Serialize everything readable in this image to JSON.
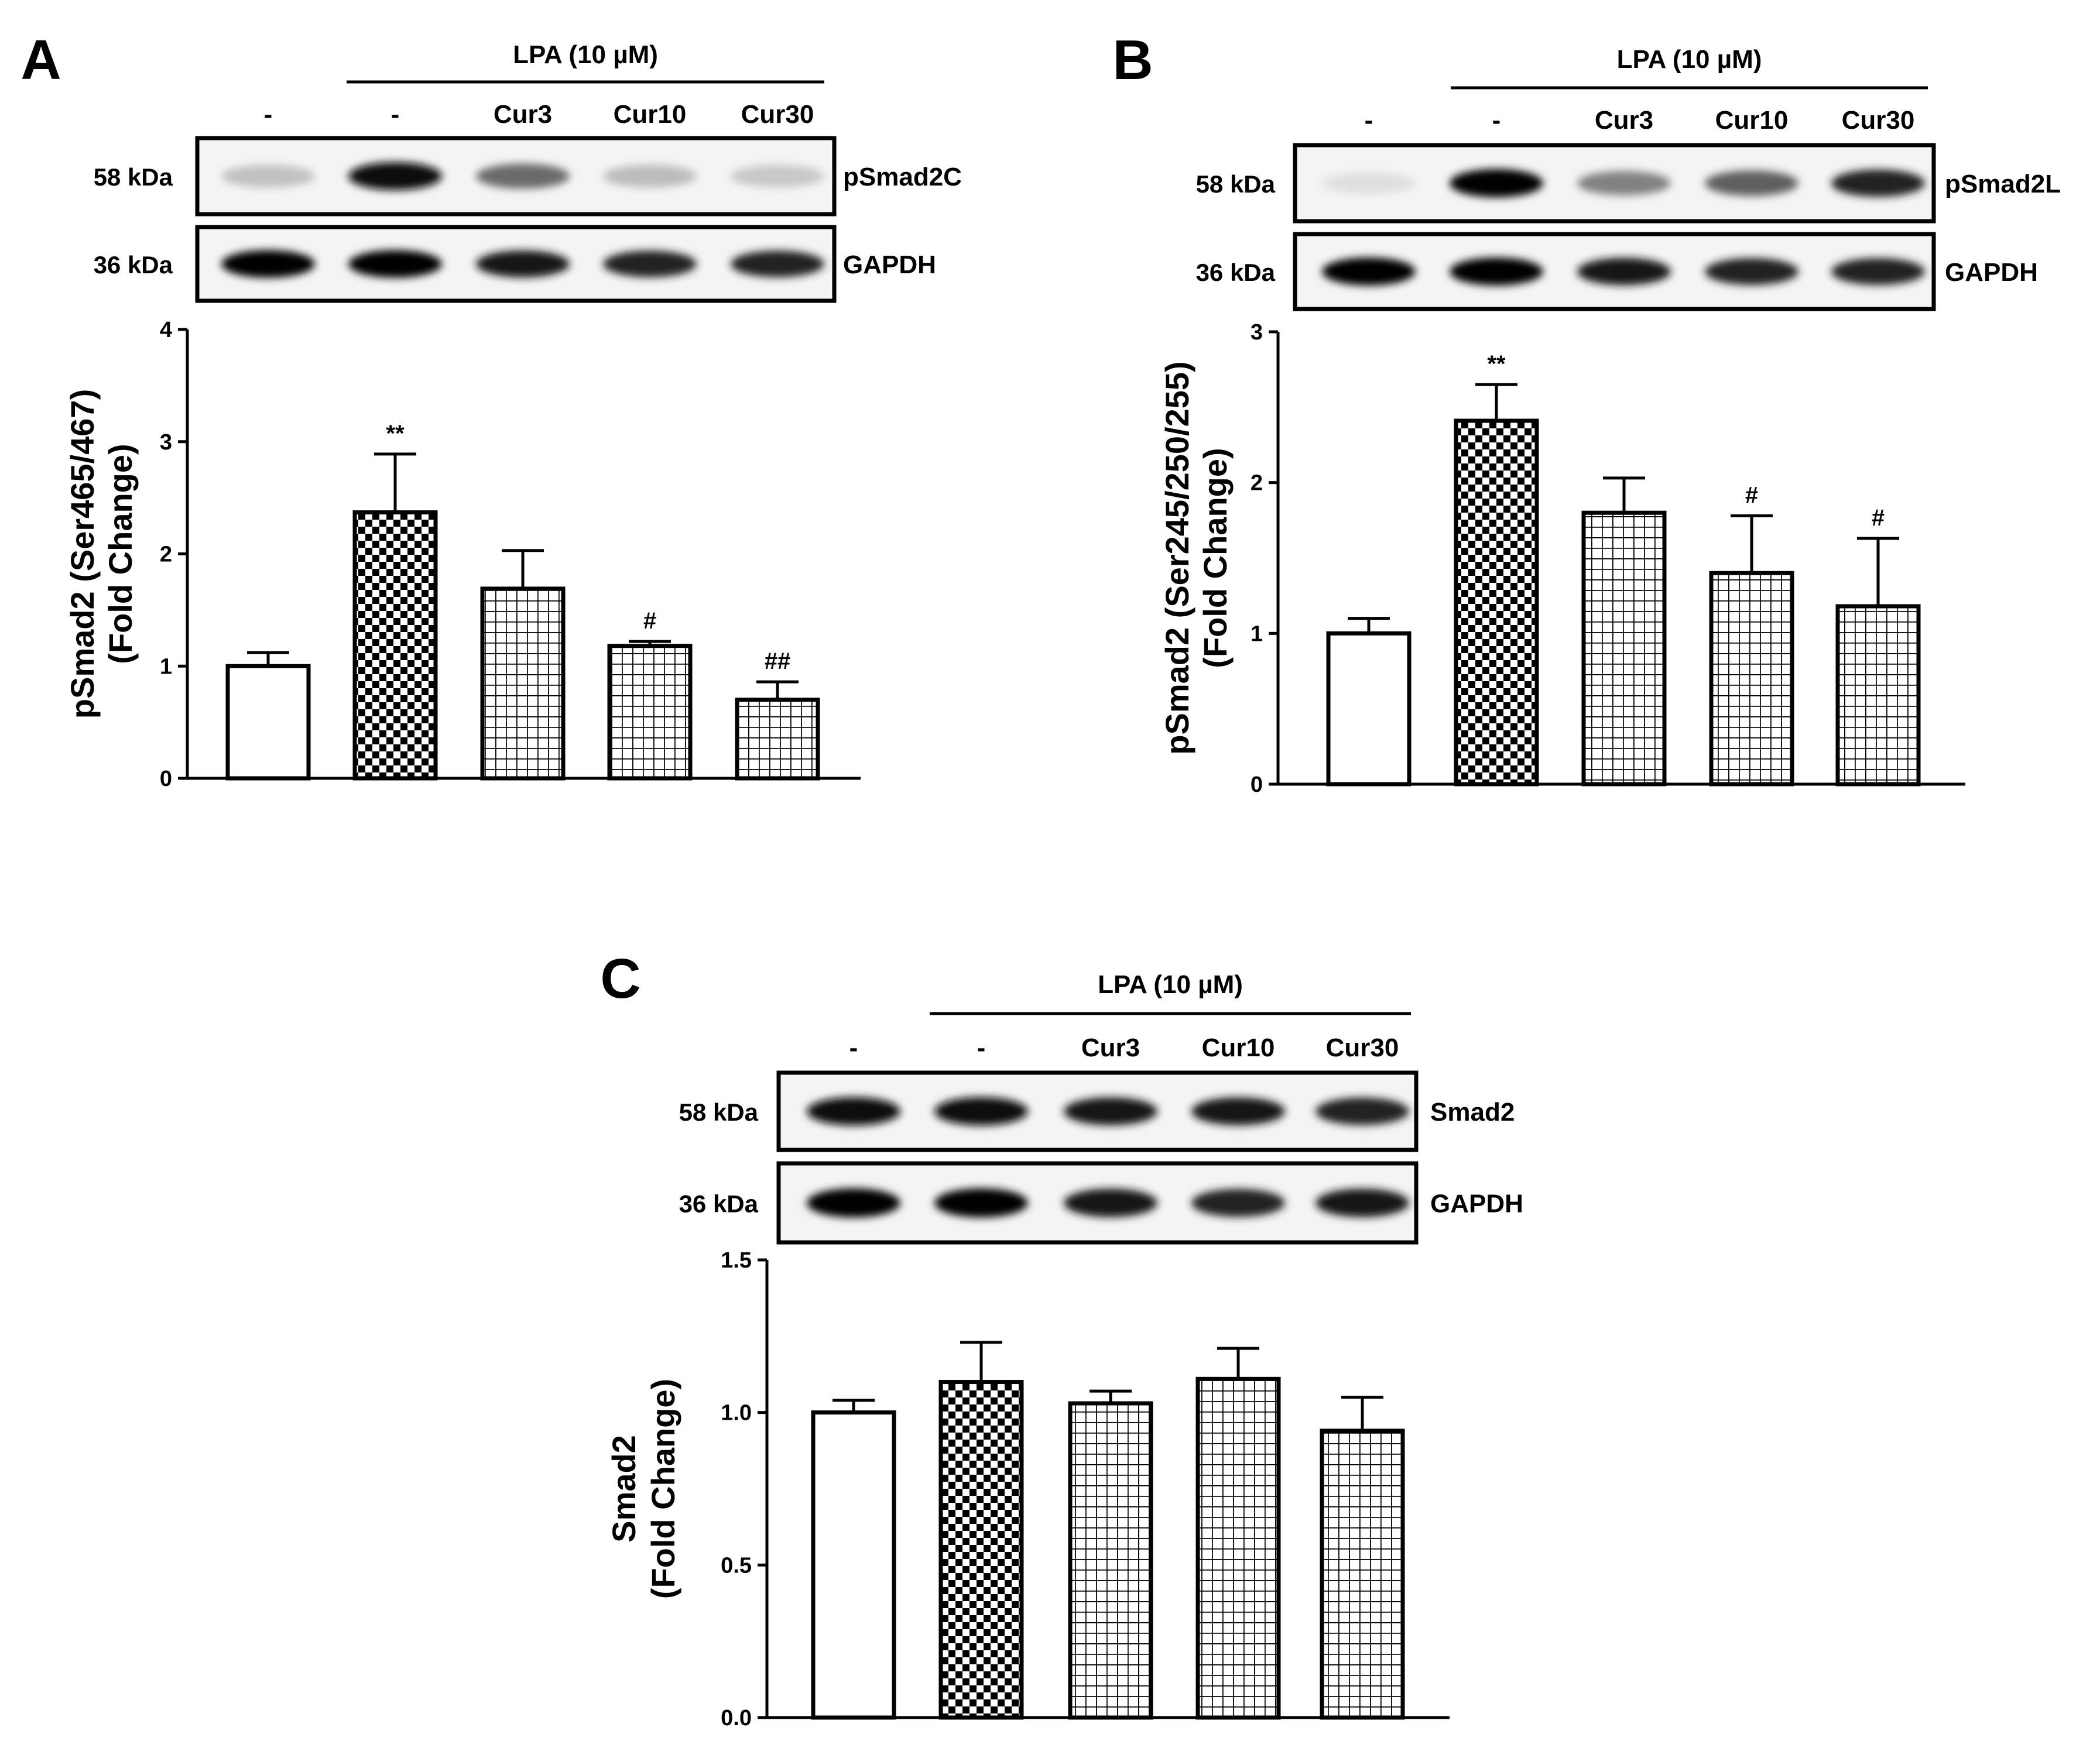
{
  "panels": [
    {
      "letter": "A",
      "treatment_label": "LPA (10 µM)",
      "lanes": [
        "-",
        "-",
        "Cur3",
        "Cur10",
        "Cur30"
      ],
      "blots": [
        {
          "kda": "58 kDa",
          "protein": "pSmad2C",
          "intensities": [
            0.18,
            0.95,
            0.55,
            0.2,
            0.15
          ]
        },
        {
          "kda": "36 kDa",
          "protein": "GAPDH",
          "intensities": [
            1.0,
            1.0,
            0.9,
            0.85,
            0.85
          ]
        }
      ],
      "chart_data": {
        "type": "bar",
        "categories": [
          "-",
          "-",
          "Cur3",
          "Cur10",
          "Cur30"
        ],
        "values": [
          1.0,
          2.37,
          1.69,
          1.18,
          0.7
        ],
        "errors": [
          0.12,
          0.52,
          0.34,
          0.04,
          0.16
        ],
        "significance": [
          "",
          "**",
          "",
          "#",
          "##"
        ],
        "ylabel": [
          "pSmad2 (Ser465/467)",
          "(Fold Change)"
        ],
        "ylim": [
          0,
          4
        ],
        "yticks": [
          "0",
          "1",
          "2",
          "3",
          "4"
        ],
        "ytick_values": [
          0,
          1,
          2,
          3,
          4
        ]
      }
    },
    {
      "letter": "B",
      "treatment_label": "LPA (10 µM)",
      "lanes": [
        "-",
        "-",
        "Cur3",
        "Cur10",
        "Cur30"
      ],
      "blots": [
        {
          "kda": "58 kDa",
          "protein": "pSmad2L",
          "intensities": [
            0.05,
            1.0,
            0.45,
            0.6,
            0.85
          ]
        },
        {
          "kda": "36 kDa",
          "protein": "GAPDH",
          "intensities": [
            1.0,
            1.0,
            0.9,
            0.85,
            0.85
          ]
        }
      ],
      "chart_data": {
        "type": "bar",
        "categories": [
          "-",
          "-",
          "Cur3",
          "Cur10",
          "Cur30"
        ],
        "values": [
          1.0,
          2.41,
          1.8,
          1.4,
          1.18
        ],
        "errors": [
          0.1,
          0.24,
          0.23,
          0.38,
          0.45
        ],
        "significance": [
          "",
          "**",
          "",
          "#",
          "#"
        ],
        "ylabel": [
          "pSmad2 (Ser245/250/255)",
          "(Fold Change)"
        ],
        "ylim": [
          0,
          3
        ],
        "yticks": [
          "0",
          "1",
          "2",
          "3"
        ],
        "ytick_values": [
          0,
          1,
          2,
          3
        ]
      }
    },
    {
      "letter": "C",
      "treatment_label": "LPA (10 µM)",
      "lanes": [
        "-",
        "-",
        "Cur3",
        "Cur10",
        "Cur30"
      ],
      "blots": [
        {
          "kda": "58 kDa",
          "protein": "Smad2",
          "intensities": [
            0.95,
            0.95,
            0.9,
            0.9,
            0.85
          ]
        },
        {
          "kda": "36 kDa",
          "protein": "GAPDH",
          "intensities": [
            1.0,
            1.0,
            0.9,
            0.85,
            0.9
          ]
        }
      ],
      "chart_data": {
        "type": "bar",
        "categories": [
          "-",
          "-",
          "Cur3",
          "Cur10",
          "Cur30"
        ],
        "values": [
          1.0,
          1.1,
          1.03,
          1.11,
          0.94
        ],
        "errors": [
          0.04,
          0.13,
          0.04,
          0.1,
          0.11
        ],
        "significance": [
          "",
          "",
          "",
          "",
          ""
        ],
        "ylabel": [
          "Smad2",
          "(Fold Change)"
        ],
        "ylim": [
          0,
          1.5
        ],
        "yticks": [
          "0.0",
          "0.5",
          "1.0",
          "1.5"
        ],
        "ytick_values": [
          0,
          0.5,
          1.0,
          1.5
        ]
      }
    }
  ]
}
